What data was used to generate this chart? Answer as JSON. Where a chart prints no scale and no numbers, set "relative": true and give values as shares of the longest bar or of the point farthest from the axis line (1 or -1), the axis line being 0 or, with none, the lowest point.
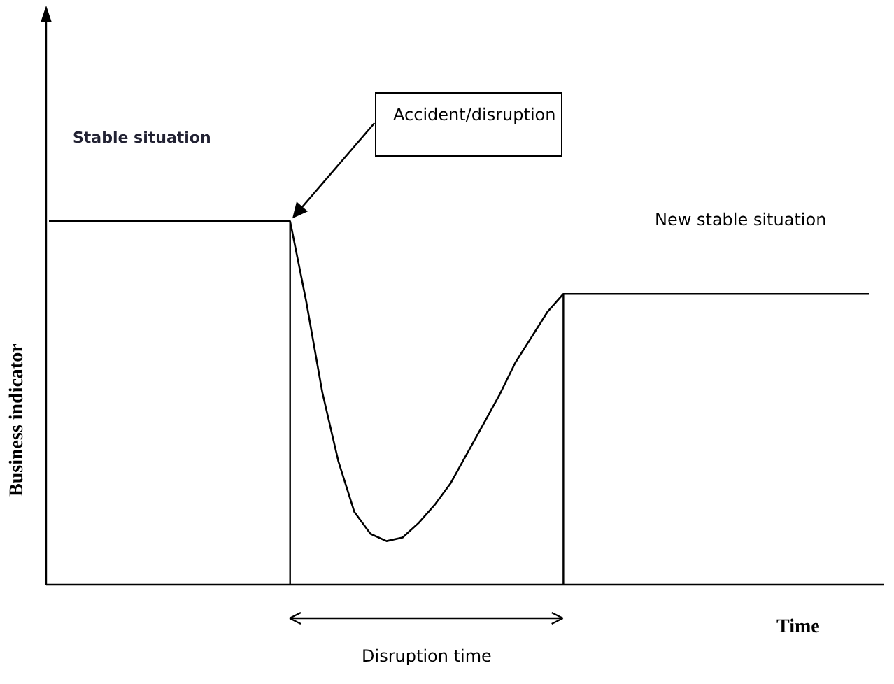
{
  "chart_data": {
    "type": "line",
    "relative": true,
    "xlabel": "Time",
    "ylabel": "Business indicator",
    "categories": [
      null,
      null,
      null,
      null,
      null,
      null,
      null,
      null,
      null,
      null,
      null,
      null,
      null,
      null,
      null,
      null,
      null,
      null,
      null,
      null,
      null,
      null,
      null,
      null,
      null,
      null,
      null,
      null,
      null,
      null,
      null,
      null,
      null,
      null,
      null,
      null,
      null,
      null,
      null,
      null,
      null,
      null,
      null,
      null,
      null,
      null,
      null,
      null,
      null,
      null,
      null,
      null
    ],
    "series": [
      {
        "color": "#000000",
        "values": [
          1,
          1,
          1,
          1,
          1,
          1,
          1,
          1,
          1,
          1,
          1,
          1,
          1,
          1,
          1,
          1,
          0.78,
          0.53,
          0.34,
          0.2,
          0.14,
          0.12,
          0.13,
          0.17,
          0.22,
          0.28,
          0.36,
          0.44,
          0.52,
          0.61,
          0.68,
          0.75,
          0.8,
          0.8,
          0.8,
          0.8,
          0.8,
          0.8,
          0.8,
          0.8,
          0.8,
          0.8,
          0.8,
          0.8,
          0.8,
          0.8,
          0.8,
          0.8,
          0.8,
          0.8,
          0.8,
          0.8
        ]
      }
    ],
    "annotations": [
      "Stable situation",
      "Accident/disruption",
      "New stable situation",
      "Disruption time"
    ],
    "marker": "none",
    "line_style": "solid",
    "legend": false
  }
}
